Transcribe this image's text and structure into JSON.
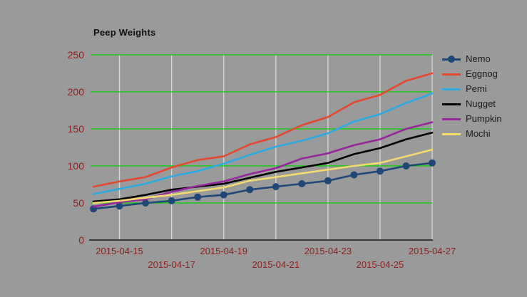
{
  "chart_data": {
    "type": "line",
    "title": "Peep Weights",
    "xlabel": "",
    "ylabel": "",
    "x": [
      "2015-04-14",
      "2015-04-15",
      "2015-04-16",
      "2015-04-17",
      "2015-04-18",
      "2015-04-19",
      "2015-04-20",
      "2015-04-21",
      "2015-04-22",
      "2015-04-23",
      "2015-04-24",
      "2015-04-25",
      "2015-04-26",
      "2015-04-27"
    ],
    "x_ticks": [
      {
        "label": "2015-04-15",
        "day": 1,
        "row": 1
      },
      {
        "label": "2015-04-17",
        "day": 3,
        "row": 2
      },
      {
        "label": "2015-04-19",
        "day": 5,
        "row": 1
      },
      {
        "label": "2015-04-21",
        "day": 7,
        "row": 2
      },
      {
        "label": "2015-04-23",
        "day": 9,
        "row": 1
      },
      {
        "label": "2015-04-25",
        "day": 11,
        "row": 2
      },
      {
        "label": "2015-04-27",
        "day": 13,
        "row": 1
      }
    ],
    "y_ticks": [
      0,
      50,
      100,
      150,
      200,
      250
    ],
    "ylim": [
      0,
      250
    ],
    "grid": {
      "horizontal_color": "#00D400",
      "vertical_color": "#D9D9D9",
      "axis_color": "#1a1a1a"
    },
    "tick_label_color": "#8E2020",
    "legend_position": "right",
    "series": [
      {
        "name": "Nemo",
        "color": "#1F4877",
        "marker": "circle",
        "values": [
          42,
          46,
          50,
          53,
          58,
          61,
          68,
          72,
          76,
          80,
          88,
          93,
          100,
          104
        ]
      },
      {
        "name": "Eggnog",
        "color": "#E2492F",
        "marker": "none",
        "values": [
          72,
          79,
          85,
          98,
          108,
          113,
          129,
          139,
          155,
          166,
          186,
          196,
          215,
          225
        ]
      },
      {
        "name": "Pemi",
        "color": "#2EA9DF",
        "marker": "none",
        "values": [
          62,
          69,
          76,
          86,
          93,
          103,
          115,
          126,
          134,
          144,
          160,
          170,
          185,
          198
        ]
      },
      {
        "name": "Nugget",
        "color": "#000000",
        "marker": "none",
        "values": [
          52,
          55,
          61,
          68,
          72,
          76,
          84,
          92,
          98,
          104,
          116,
          124,
          136,
          145
        ]
      },
      {
        "name": "Pumpkin",
        "color": "#97259E",
        "marker": "none",
        "values": [
          45,
          51,
          55,
          65,
          73,
          79,
          89,
          97,
          110,
          117,
          128,
          136,
          150,
          159
        ]
      },
      {
        "name": "Mochi",
        "color": "#F4DB70",
        "marker": "none",
        "values": [
          50,
          53,
          57,
          61,
          66,
          71,
          80,
          85,
          90,
          95,
          100,
          104,
          113,
          122
        ]
      }
    ]
  }
}
